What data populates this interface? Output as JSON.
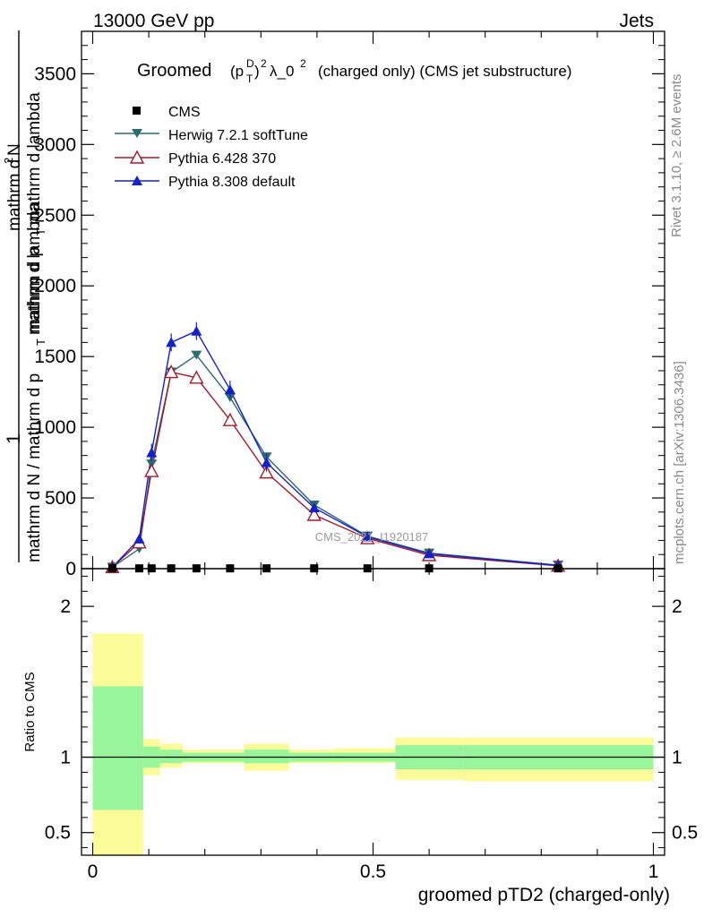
{
  "header": {
    "left": "13000 GeV pp",
    "right": "Jets"
  },
  "side_labels": {
    "rivet": "Rivet 3.1.10, ≥ 2.6M events",
    "mcplots": "mcplots.cern.ch [arXiv:1306.3436]"
  },
  "watermark": "CMS_2021_I1920187",
  "chart_data": [
    {
      "type": "line",
      "panel": "main",
      "title": "Groomed (p_T^D)^2 λ_0^2  (charged only) (CMS jet substructure)",
      "title_parts": {
        "prefix": "Groomed",
        "p": "(p",
        "sub": "T",
        "sup_d": "D",
        "close": ")",
        "sup2": "2",
        "lambda": "λ_0",
        "sup2b": "2",
        "suffix": "(charged only) (CMS jet substructure)"
      },
      "ylabel_lines": [
        "1",
        "mathrm d N / mathrm d p_T mathrm d lambda",
        "mathrm d^2N",
        "mathrm d p_T mathrm d lambda"
      ],
      "ylabel_parts": {
        "one": "1",
        "den": "mathrm d N / mathrm d p",
        "den_sub": "T",
        "den_end": "mathrm d lambda",
        "num_top": "mathrm d",
        "num_sup": "2",
        "num_n": "N",
        "num_bot": "mathrm d p",
        "num_bot_sub": "T",
        "num_bot_end": "mathrm d lambda"
      },
      "xlim": [
        -0.02,
        1.02
      ],
      "ylim": [
        0,
        3800
      ],
      "yticks": [
        0,
        500,
        1000,
        1500,
        2000,
        2500,
        3000,
        3500
      ],
      "ytick_labels": [
        "0",
        "500",
        "1000",
        "1500",
        "2000",
        "2500",
        "3000",
        "3500"
      ],
      "legend_position": "top-left",
      "series": [
        {
          "name": "CMS",
          "color": "#000000",
          "marker": "square",
          "x": [
            0.035,
            0.083,
            0.105,
            0.14,
            0.185,
            0.245,
            0.31,
            0.395,
            0.49,
            0.6,
            0.83
          ],
          "y": [
            3,
            2,
            2,
            2,
            2,
            2,
            2,
            2,
            2,
            2,
            2
          ]
        },
        {
          "name": "Herwig 7.2.1 softTune",
          "color": "#2e6b6b",
          "marker": "triangle-down",
          "x": [
            0.035,
            0.083,
            0.105,
            0.14,
            0.185,
            0.245,
            0.31,
            0.395,
            0.49,
            0.6,
            0.83
          ],
          "y": [
            10,
            140,
            740,
            1390,
            1510,
            1210,
            790,
            450,
            230,
            110,
            25
          ]
        },
        {
          "name": "Pythia 6.428 370",
          "color": "#a01c2e",
          "marker": "triangle-up-open",
          "x": [
            0.035,
            0.083,
            0.105,
            0.14,
            0.185,
            0.245,
            0.31,
            0.395,
            0.49,
            0.6,
            0.83
          ],
          "y": [
            10,
            185,
            690,
            1390,
            1350,
            1050,
            680,
            380,
            215,
            95,
            20
          ]
        },
        {
          "name": "Pythia 8.308 default",
          "color": "#1420c8",
          "marker": "triangle-up",
          "x": [
            0.035,
            0.083,
            0.105,
            0.14,
            0.185,
            0.245,
            0.31,
            0.395,
            0.49,
            0.6,
            0.83
          ],
          "y": [
            10,
            210,
            820,
            1600,
            1680,
            1265,
            750,
            430,
            225,
            105,
            22
          ]
        }
      ]
    },
    {
      "type": "area",
      "panel": "ratio",
      "ylabel": "Ratio to CMS",
      "xlabel": "groomed pTD2 (charged-only)",
      "xlim": [
        -0.02,
        1.02
      ],
      "ylim": [
        0.35,
        2.25
      ],
      "yticks": [
        0.5,
        1,
        2
      ],
      "ytick_labels": [
        "0.5",
        "1",
        "2"
      ],
      "xticks": [
        0,
        0.5,
        1
      ],
      "xtick_labels": [
        "0",
        "0.5",
        "1"
      ],
      "reference_line": 1,
      "bins": [
        {
          "x0": 0.0,
          "x1": 0.09,
          "inner": [
            0.65,
            1.47
          ],
          "outer": [
            0.35,
            1.82
          ]
        },
        {
          "x0": 0.09,
          "x1": 0.12,
          "inner": [
            0.93,
            1.07
          ],
          "outer": [
            0.88,
            1.12
          ]
        },
        {
          "x0": 0.12,
          "x1": 0.16,
          "inner": [
            0.96,
            1.05
          ],
          "outer": [
            0.93,
            1.09
          ]
        },
        {
          "x0": 0.16,
          "x1": 0.27,
          "inner": [
            0.97,
            1.03
          ],
          "outer": [
            0.96,
            1.05
          ]
        },
        {
          "x0": 0.27,
          "x1": 0.35,
          "inner": [
            0.96,
            1.05
          ],
          "outer": [
            0.91,
            1.09
          ]
        },
        {
          "x0": 0.35,
          "x1": 0.43,
          "inner": [
            0.97,
            1.03
          ],
          "outer": [
            0.96,
            1.05
          ]
        },
        {
          "x0": 0.43,
          "x1": 0.54,
          "inner": [
            0.97,
            1.03
          ],
          "outer": [
            0.96,
            1.06
          ]
        },
        {
          "x0": 0.54,
          "x1": 0.66,
          "inner": [
            0.92,
            1.08
          ],
          "outer": [
            0.85,
            1.13
          ]
        },
        {
          "x0": 0.66,
          "x1": 1.0,
          "inner": [
            0.92,
            1.08
          ],
          "outer": [
            0.84,
            1.13
          ]
        }
      ],
      "colors": {
        "inner": "#99f599",
        "outer": "#fbfb99",
        "line": "#000000"
      }
    }
  ]
}
